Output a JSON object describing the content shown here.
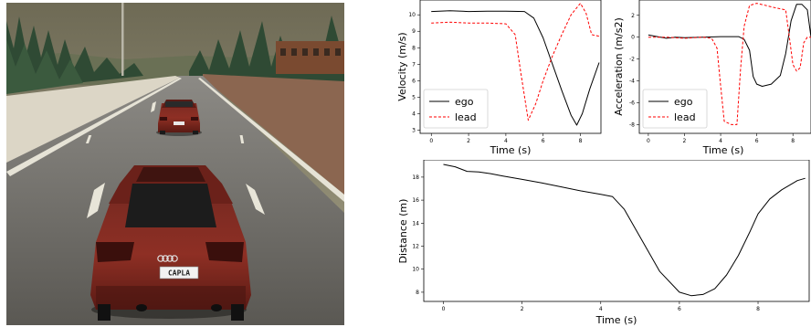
{
  "scene": {
    "plate_text": "CAPLA"
  },
  "chart_data": [
    {
      "id": "velocity",
      "type": "line",
      "xlabel": "Time (s)",
      "ylabel": "Velocity (m/s)",
      "xlim": [
        -0.6,
        9.1
      ],
      "ylim": [
        2.8,
        10.9
      ],
      "xticks": [
        0,
        2,
        4,
        6,
        8
      ],
      "yticks": [
        3,
        4,
        5,
        6,
        7,
        8,
        9,
        10
      ],
      "legend": "lower-left",
      "series": [
        {
          "name": "ego",
          "color": "#000000",
          "style": "solid",
          "x": [
            0,
            1,
            2,
            3,
            4,
            5,
            5.5,
            6.0,
            6.5,
            7.0,
            7.5,
            7.8,
            8.1,
            8.5,
            9.0
          ],
          "y": [
            10.2,
            10.25,
            10.2,
            10.22,
            10.22,
            10.2,
            9.8,
            8.6,
            7.0,
            5.4,
            3.9,
            3.3,
            4.0,
            5.5,
            7.1
          ]
        },
        {
          "name": "lead",
          "color": "#ff0000",
          "style": "dashed",
          "x": [
            0,
            1,
            2,
            3,
            4,
            4.5,
            4.8,
            5.2,
            5.6,
            6.0,
            6.5,
            7.0,
            7.5,
            8.0,
            8.3,
            8.6,
            9.0
          ],
          "y": [
            9.5,
            9.55,
            9.5,
            9.5,
            9.45,
            8.8,
            6.5,
            3.6,
            4.6,
            6.0,
            7.5,
            8.8,
            10.0,
            10.7,
            10.1,
            8.8,
            8.7
          ]
        }
      ]
    },
    {
      "id": "acceleration",
      "type": "line",
      "xlabel": "Time (s)",
      "ylabel": "Acceleration (m/s2)",
      "xlim": [
        -0.5,
        9.0
      ],
      "ylim": [
        -8.8,
        3.4
      ],
      "xticks": [
        0,
        2,
        4,
        6,
        8
      ],
      "yticks": [
        -8,
        -6,
        -4,
        -2,
        0,
        2
      ],
      "legend": "lower-left",
      "series": [
        {
          "name": "ego",
          "color": "#000000",
          "style": "solid",
          "x": [
            0,
            0.5,
            1,
            1.5,
            2,
            3,
            4,
            5,
            5.3,
            5.6,
            5.8,
            6.0,
            6.3,
            6.8,
            7.3,
            7.6,
            7.9,
            8.2,
            8.5,
            8.8,
            9.0
          ],
          "y": [
            0.2,
            0.05,
            -0.1,
            0.0,
            -0.05,
            0.0,
            0.05,
            0.05,
            -0.2,
            -1.2,
            -3.6,
            -4.3,
            -4.5,
            -4.3,
            -3.5,
            -1.5,
            1.5,
            3.0,
            3.0,
            2.5,
            0.0
          ]
        },
        {
          "name": "lead",
          "color": "#ff0000",
          "style": "dashed",
          "x": [
            0,
            1,
            2,
            3,
            3.5,
            3.8,
            4.0,
            4.2,
            4.6,
            4.9,
            5.1,
            5.3,
            5.6,
            6.0,
            7.0,
            7.6,
            7.8,
            8.0,
            8.2,
            8.4,
            8.6,
            8.8,
            9.0
          ],
          "y": [
            0.0,
            0.0,
            -0.1,
            0.0,
            -0.1,
            -1.0,
            -4.5,
            -7.7,
            -8.0,
            -8.0,
            -3.0,
            1.0,
            2.9,
            3.1,
            2.7,
            2.5,
            0.0,
            -2.5,
            -3.1,
            -2.8,
            -0.5,
            0.0,
            0.0
          ]
        }
      ]
    },
    {
      "id": "distance",
      "type": "line",
      "xlabel": "Time (s)",
      "ylabel": "Distance (m)",
      "xlim": [
        -0.5,
        9.3
      ],
      "ylim": [
        7.2,
        19.5
      ],
      "xticks": [
        0,
        2,
        4,
        6,
        8
      ],
      "yticks": [
        8,
        10,
        12,
        14,
        16,
        18
      ],
      "series": [
        {
          "color": "#000000",
          "style": "solid",
          "x": [
            0,
            0.3,
            0.6,
            0.9,
            1.2,
            1.5,
            2.0,
            2.5,
            3.0,
            3.5,
            4.0,
            4.3,
            4.6,
            5.0,
            5.5,
            6.0,
            6.3,
            6.6,
            6.9,
            7.2,
            7.5,
            7.8,
            8.0,
            8.3,
            8.6,
            9.0,
            9.2
          ],
          "y": [
            19.1,
            18.9,
            18.5,
            18.45,
            18.3,
            18.1,
            17.8,
            17.5,
            17.15,
            16.8,
            16.5,
            16.3,
            15.2,
            12.8,
            9.8,
            8.0,
            7.7,
            7.8,
            8.3,
            9.5,
            11.2,
            13.3,
            14.8,
            16.1,
            16.9,
            17.7,
            17.9
          ]
        }
      ]
    }
  ]
}
